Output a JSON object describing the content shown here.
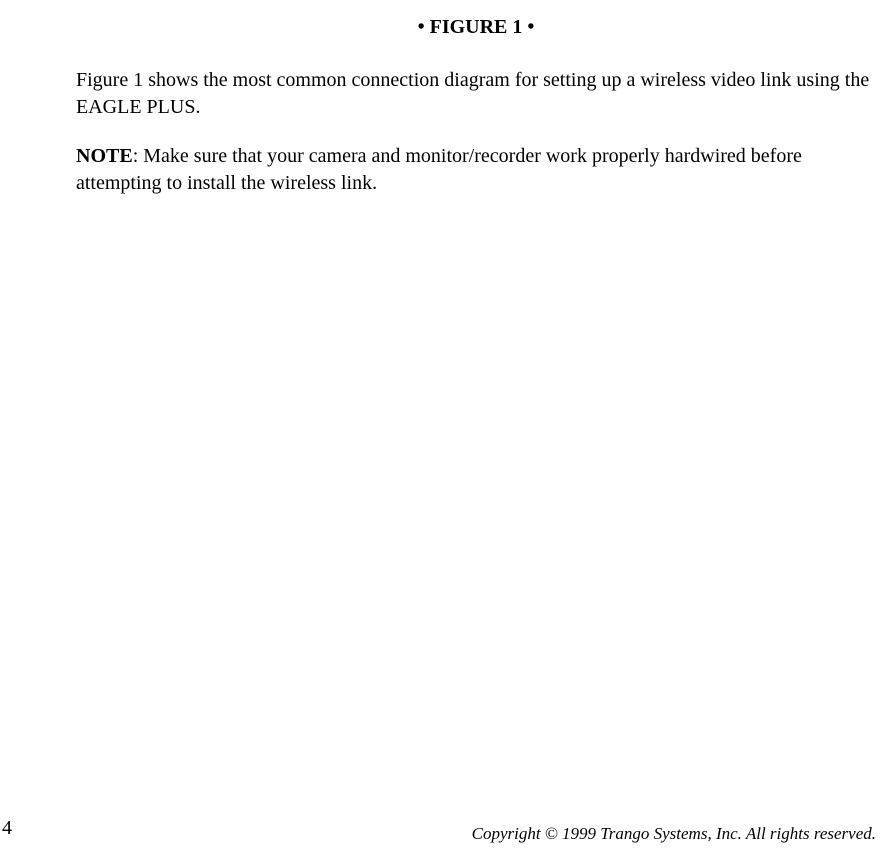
{
  "figure_title": "• FIGURE 1 •",
  "paragraph1": "Figure 1 shows the most common connection diagram for setting up a wireless video link using the EAGLE PLUS.",
  "note_label": "NOTE",
  "note_text": ": Make sure that your camera and monitor/recorder work properly hardwired before attempting to install the wireless link.",
  "page_number": "4",
  "copyright": "Copyright © 1999 Trango Systems, Inc.  All rights reserved.",
  "colors": {
    "text": "#000000",
    "background": "#ffffff"
  },
  "typography": {
    "body_fontsize": 20,
    "title_fontsize": 20,
    "copyright_fontsize": 17,
    "font_family": "Times New Roman"
  }
}
